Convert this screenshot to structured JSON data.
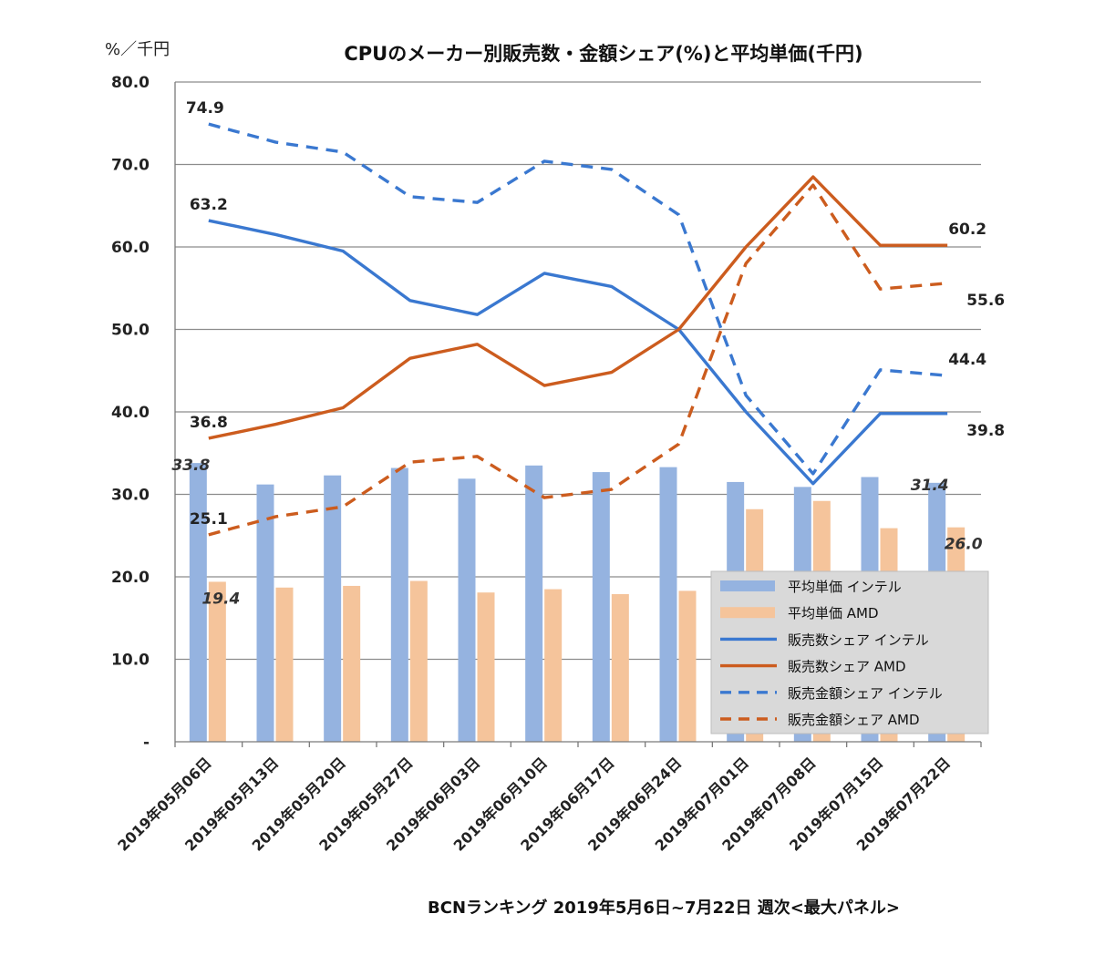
{
  "chart_data": {
    "type": "bar",
    "title": "CPUのメーカー別販売数・金額シェア(%)と平均単価(千円)",
    "ylabel": "%／千円",
    "source": "BCNランキング 2019年5月6日~7月22日 週次<最大パネル>",
    "ylim": [
      0,
      80
    ],
    "yticks": [
      "-",
      "10.0",
      "20.0",
      "30.0",
      "40.0",
      "50.0",
      "60.0",
      "70.0",
      "80.0"
    ],
    "grid": true,
    "legend_position": "bottom-right",
    "categories": [
      "2019年05月06日",
      "2019年05月13日",
      "2019年05月20日",
      "2019年05月27日",
      "2019年06月03日",
      "2019年06月10日",
      "2019年06月17日",
      "2019年06月24日",
      "2019年07月01日",
      "2019年07月08日",
      "2019年07月15日",
      "2019年07月22日"
    ],
    "series": [
      {
        "name": "平均単価 インテル",
        "kind": "bar",
        "color": "#95b3e0",
        "values": [
          33.8,
          31.2,
          32.3,
          33.2,
          31.9,
          33.5,
          32.7,
          33.3,
          31.5,
          30.9,
          32.1,
          31.4
        ]
      },
      {
        "name": "平均単価 AMD",
        "kind": "bar",
        "color": "#f5c49b",
        "values": [
          19.4,
          18.7,
          18.9,
          19.5,
          18.1,
          18.5,
          17.9,
          18.3,
          28.2,
          29.2,
          25.9,
          26.0
        ]
      },
      {
        "name": "販売数シェア インテル",
        "kind": "line",
        "color": "#3a78d0",
        "values": [
          63.2,
          61.5,
          59.5,
          53.5,
          51.8,
          56.8,
          55.2,
          50.0,
          40.0,
          31.3,
          39.8,
          39.8
        ]
      },
      {
        "name": "販売数シェア AMD",
        "kind": "line",
        "color": "#cc5c1e",
        "values": [
          36.8,
          38.5,
          40.5,
          46.5,
          48.2,
          43.2,
          44.8,
          50.0,
          60.0,
          68.5,
          60.2,
          60.2
        ]
      },
      {
        "name": "販売金額シェア インテル",
        "kind": "dashed",
        "color": "#3a78d0",
        "values": [
          74.9,
          72.7,
          71.5,
          66.1,
          65.4,
          70.4,
          69.4,
          63.9,
          42.0,
          32.5,
          45.1,
          44.4
        ]
      },
      {
        "name": "販売金額シェア AMD",
        "kind": "dashed",
        "color": "#cc5c1e",
        "values": [
          25.1,
          27.3,
          28.5,
          33.9,
          34.6,
          29.6,
          30.6,
          36.1,
          58.0,
          67.5,
          54.9,
          55.6
        ]
      }
    ],
    "data_labels": [
      {
        "text": "74.9",
        "series": 4,
        "index": 0,
        "pos": "above-left"
      },
      {
        "text": "63.2",
        "series": 2,
        "index": 0,
        "pos": "above"
      },
      {
        "text": "36.8",
        "series": 3,
        "index": 0,
        "pos": "above"
      },
      {
        "text": "25.1",
        "series": 5,
        "index": 0,
        "pos": "above"
      },
      {
        "text": "33.8",
        "series": 0,
        "index": 0,
        "pos": "bar-top",
        "italic": true
      },
      {
        "text": "19.4",
        "series": 1,
        "index": 0,
        "pos": "below",
        "italic": true
      },
      {
        "text": "60.2",
        "series": 3,
        "index": 11,
        "pos": "above-right"
      },
      {
        "text": "55.6",
        "series": 5,
        "index": 11,
        "pos": "below-right"
      },
      {
        "text": "44.4",
        "series": 4,
        "index": 11,
        "pos": "above-right"
      },
      {
        "text": "39.8",
        "series": 2,
        "index": 11,
        "pos": "below-right"
      },
      {
        "text": "31.4",
        "series": 0,
        "index": 11,
        "pos": "bar-top",
        "italic": true
      },
      {
        "text": "26.0",
        "series": 1,
        "index": 11,
        "pos": "inside",
        "italic": true
      }
    ]
  }
}
